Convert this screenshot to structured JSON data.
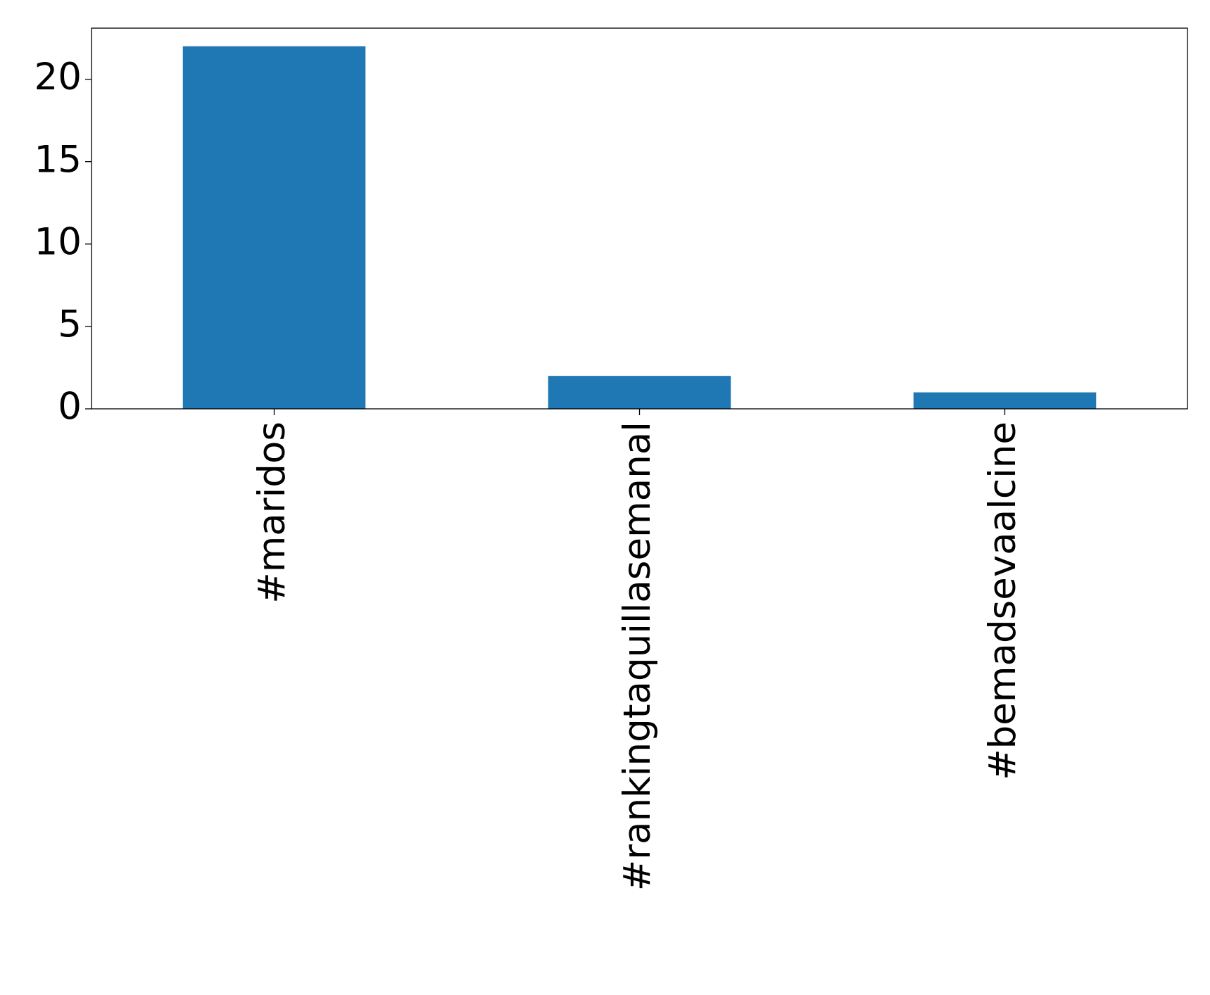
{
  "chart_data": {
    "type": "bar",
    "categories": [
      "#maridos",
      "#rankingtaquillasemanal",
      "#bemadsevaalcine"
    ],
    "values": [
      22,
      2,
      1
    ],
    "color": "#1f77b4",
    "ylim": [
      0,
      23.1
    ],
    "yticks": [
      0,
      5,
      10,
      15,
      20
    ]
  }
}
